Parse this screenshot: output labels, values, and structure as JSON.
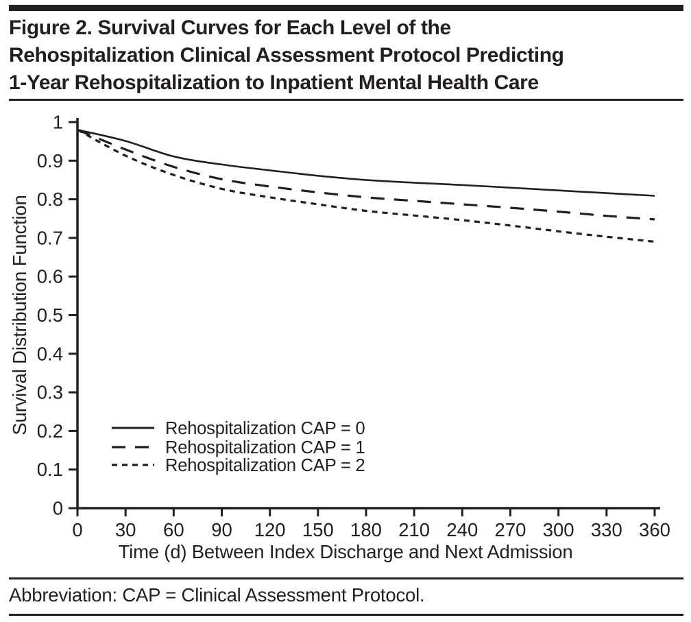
{
  "figure": {
    "title": "Figure 2. Survival Curves for Each Level of the\nRehospitalization Clinical Assessment Protocol Predicting\n1-Year Rehospitalization to Inpatient Mental Health Care",
    "footnote": "Abbreviation: CAP = Clinical Assessment Protocol."
  },
  "colors": {
    "ink": "#231f20",
    "background": "#ffffff"
  },
  "chart_data": {
    "type": "line",
    "title": "",
    "xlabel": "Time (d) Between Index Discharge and Next Admission",
    "ylabel": "Survival Distribution Function",
    "xlim": [
      0,
      360
    ],
    "ylim": [
      0,
      1
    ],
    "xticks": [
      0,
      30,
      60,
      90,
      120,
      150,
      180,
      210,
      240,
      270,
      300,
      330,
      360
    ],
    "yticks": [
      0,
      0.1,
      0.2,
      0.3,
      0.4,
      0.5,
      0.6,
      0.7,
      0.8,
      0.9,
      1
    ],
    "ytick_labels": [
      "0",
      "0.1",
      "0.2",
      "0.3",
      "0.4",
      "0.5",
      "0.6",
      "0.7",
      "0.8",
      "0.9",
      "1"
    ],
    "grid": false,
    "legend_position": "inside-lower-left",
    "x": [
      0,
      30,
      60,
      90,
      120,
      150,
      180,
      210,
      240,
      270,
      300,
      330,
      360
    ],
    "series": [
      {
        "name": "Rehospitalization CAP = 0",
        "line_style": "solid",
        "values": [
          0.98,
          0.951,
          0.911,
          0.89,
          0.875,
          0.861,
          0.85,
          0.843,
          0.837,
          0.83,
          0.823,
          0.816,
          0.809
        ]
      },
      {
        "name": "Rehospitalization CAP = 1",
        "line_style": "long-dash",
        "values": [
          0.98,
          0.929,
          0.884,
          0.852,
          0.833,
          0.818,
          0.805,
          0.796,
          0.787,
          0.778,
          0.768,
          0.757,
          0.748
        ]
      },
      {
        "name": "Rehospitalization CAP = 2",
        "line_style": "short-dash",
        "values": [
          0.98,
          0.913,
          0.863,
          0.827,
          0.805,
          0.787,
          0.77,
          0.758,
          0.746,
          0.732,
          0.717,
          0.703,
          0.69
        ]
      }
    ]
  }
}
